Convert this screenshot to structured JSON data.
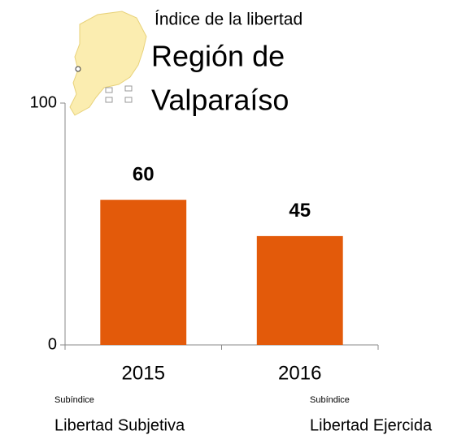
{
  "chart_data": {
    "type": "bar",
    "title": "Índice de la libertad",
    "subtitle": [
      "Región de",
      "Valparaíso"
    ],
    "categories": [
      "2015",
      "2016"
    ],
    "values": [
      60,
      45
    ],
    "color": "#e35a0a",
    "ylim": [
      0,
      100
    ],
    "yticks": [
      0,
      100
    ],
    "annotations": [
      {
        "label": "Subíndice",
        "text": "Libertad Subjetiva"
      },
      {
        "label": "Subíndice",
        "text": "Libertad Ejercida"
      }
    ]
  }
}
